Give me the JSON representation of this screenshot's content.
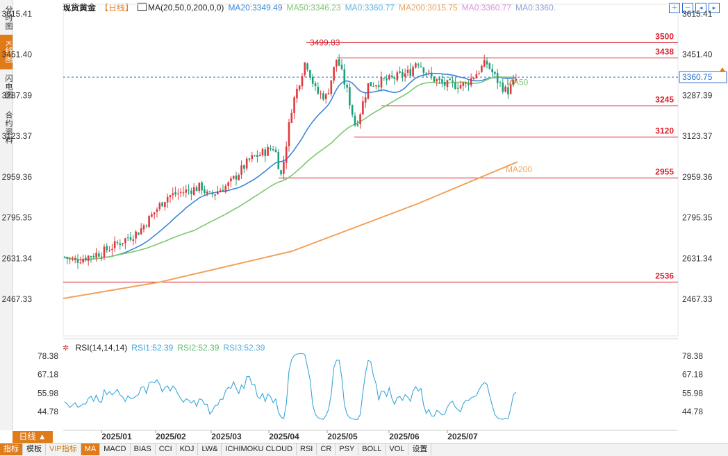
{
  "left_tabs": [
    "分时图",
    "K线图",
    "闪电图",
    "合约资料"
  ],
  "header": {
    "symbol": "现货黄金",
    "period": "【日线】",
    "ma_params": "MA(20,50,0,200,0,0)",
    "ma20": "MA20:3349.49",
    "ma50": "MA50:3346.23",
    "ma0a": "MA0:3360.77",
    "ma200": "MA200:3015.75",
    "ma0b": "MA0:3360.77",
    "ma0c": "MA0:3360."
  },
  "toolbar_icons": [
    "plus-icon",
    "minus-icon",
    "arrow-left-icon",
    "arrow-right-icon"
  ],
  "colors": {
    "up": "#e0393e",
    "down": "#1aa079",
    "ma20": "#3b86d9",
    "ma50": "#7dc86e",
    "ma200": "#f2a25c",
    "level": "#d81e2a",
    "price": "#2a6fcf"
  },
  "chart_data": {
    "type": "candlestick",
    "y_ticks": [
      "3615.41",
      "3451.40",
      "3287.39",
      "3123.37",
      "2959.36",
      "2795.35",
      "2631.34",
      "2467.33"
    ],
    "x_ticks": [
      "2025/01",
      "2025/02",
      "2025/03",
      "2025/04",
      "2025/05",
      "2025/06",
      "2025/07"
    ],
    "levels": [
      {
        "label": "3500",
        "value": 3500
      },
      {
        "label": "3438",
        "value": 3438
      },
      {
        "label": "3245",
        "value": 3245
      },
      {
        "label": "3120",
        "value": 3120
      },
      {
        "label": "2955",
        "value": 2955
      },
      {
        "label": "2536",
        "value": 2536
      }
    ],
    "peak_label": "3499.83",
    "current_price": "3360.75",
    "ma_labels": {
      "ma50": "MA50",
      "ma200": "MA200"
    },
    "rsi": {
      "title": "RSI(14,14,14)",
      "rsi1": "RSI1:52.39",
      "rsi2": "RSI2:52.39",
      "rsi3": "RSI3:52.39",
      "y_ticks": [
        "78.38",
        "67.18",
        "55.98",
        "44.78"
      ]
    }
  },
  "period_button": "日线 ▲",
  "bottom_tabs": [
    "指标",
    "模板",
    "VIP指标",
    "MA",
    "MACD",
    "BIAS",
    "CCI",
    "KDJ",
    "LW&",
    "ICHIMOKU CLOUD",
    "RSI",
    "CR",
    "PSY",
    "BOLL",
    "VOL",
    "设置"
  ]
}
